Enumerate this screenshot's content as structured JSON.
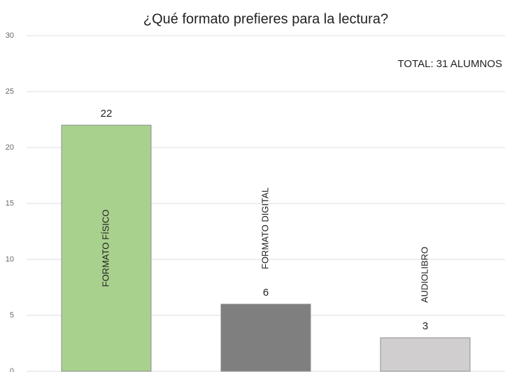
{
  "chart_data": {
    "type": "bar",
    "title": "¿Qué formato prefieres para la lectura?",
    "annotation": "TOTAL: 31 ALUMNOS",
    "categories": [
      "FORMATO FÍSICO",
      "FORMATO DIGITAL",
      "AUDIOLIBRO"
    ],
    "values": [
      22,
      6,
      3
    ],
    "colors": [
      "#a9d18e",
      "#7f7f7f",
      "#d0cece"
    ],
    "ylim": [
      0,
      30
    ],
    "yticks": [
      0,
      5,
      10,
      15,
      20,
      25,
      30
    ],
    "grid": true
  }
}
